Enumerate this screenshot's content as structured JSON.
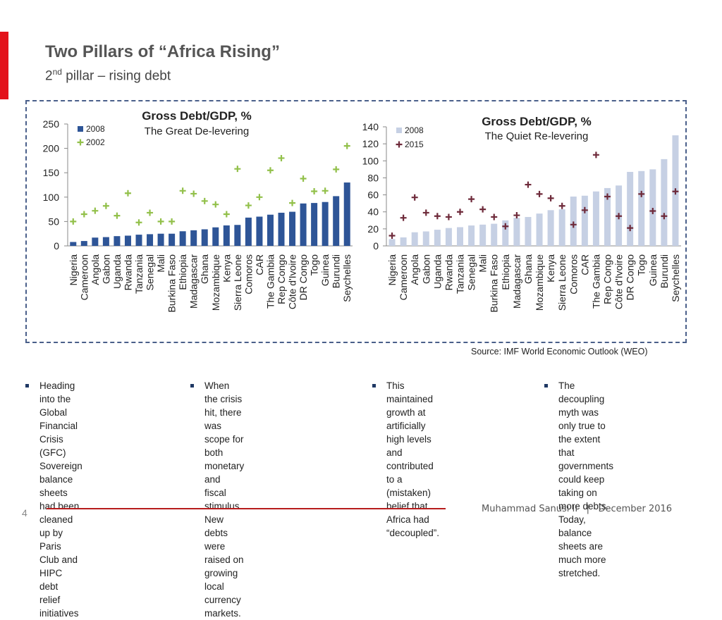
{
  "slide": {
    "title": "Two Pillars of “Africa Rising”",
    "subtitle_num": "2",
    "subtitle_sup": "nd",
    "subtitle_rest": " pillar – rising debt",
    "source": "Source: IMF World Economic Outlook (WEO)",
    "page_number": "4",
    "footer_author": "Muhammad Sanusi II",
    "footer_sep": "|",
    "footer_date": "December 2016",
    "colors": {
      "accent": "#e3121a",
      "bar_left": "#2e5597",
      "bar_right": "#c6d0e4",
      "marker_left": "#92c04a",
      "marker_right": "#6e2a3a"
    }
  },
  "bullets": [
    [
      "Heading into the Global",
      "Financial Crisis (GFC)",
      "Sovereign balance sheets",
      "had been cleaned up by",
      "Paris Club and HIPC debt",
      "relief initiatives"
    ],
    [
      "When the crisis hit, there",
      "was scope for both",
      "monetary and fiscal",
      "stimulus. New debts were",
      "raised on growing local",
      "currency markets."
    ],
    [
      "This maintained growth at",
      "artificially high levels and",
      "contributed to a",
      "(mistaken) belief that",
      "Africa had “decoupled”."
    ],
    [
      "The decoupling myth was",
      "only true to the extent that",
      "governments could keep",
      "taking on more debts.",
      "Today, balance sheets are",
      "much more stretched."
    ]
  ],
  "chart_data": [
    {
      "type": "bar",
      "title": "Gross Debt/GDP, %",
      "subtitle": "The Great De-levering",
      "categories": [
        "Nigeria",
        "Cameroon",
        "Angola",
        "Gabon",
        "Uganda",
        "Rwanda",
        "Tanzania",
        "Senegal",
        "Mali",
        "Burkina Faso",
        "Ethiopia",
        "Madagascar",
        "Ghana",
        "Mozambique",
        "Kenya",
        "Sierra Leone",
        "Comoros",
        "CAR",
        "The Gambia",
        "Rep Congo",
        "Côte d'Ivoire",
        "DR Congo",
        "Togo",
        "Guinea",
        "Burundi",
        "Seychelles"
      ],
      "series": [
        {
          "name": "2008",
          "kind": "bar",
          "values": [
            8,
            10,
            17,
            18,
            20,
            21,
            23,
            24,
            25,
            25,
            30,
            32,
            34,
            38,
            42,
            43,
            58,
            60,
            64,
            68,
            70,
            87,
            88,
            90,
            102,
            130
          ]
        },
        {
          "name": "2002",
          "kind": "marker",
          "values": [
            50,
            65,
            72,
            82,
            62,
            108,
            48,
            68,
            50,
            50,
            113,
            107,
            92,
            85,
            65,
            158,
            83,
            100,
            155,
            180,
            88,
            138,
            112,
            113,
            157,
            205
          ]
        }
      ],
      "yticks": [
        0,
        50,
        100,
        150,
        200,
        250
      ],
      "ylim": [
        0,
        250
      ],
      "legend_position": "top-left"
    },
    {
      "type": "bar",
      "title": "Gross Debt/GDP, %",
      "subtitle": "The Quiet Re-levering",
      "categories": [
        "Nigeria",
        "Cameroon",
        "Angola",
        "Gabon",
        "Uganda",
        "Rwanda",
        "Tanzania",
        "Senegal",
        "Mali",
        "Burkina Faso",
        "Ethiopia",
        "Madagascar",
        "Ghana",
        "Mozambique",
        "Kenya",
        "Sierra Leone",
        "Comoros",
        "CAR",
        "The Gambia",
        "Rep Congo",
        "Côte d'Ivoire",
        "DR Congo",
        "Togo",
        "Guinea",
        "Burundi",
        "Seychelles"
      ],
      "series": [
        {
          "name": "2008",
          "kind": "bar",
          "values": [
            8,
            10,
            16,
            17,
            19,
            21,
            22,
            24,
            25,
            26,
            30,
            33,
            34,
            38,
            42,
            43,
            58,
            59,
            64,
            68,
            71,
            87,
            88,
            90,
            102,
            130
          ]
        },
        {
          "name": "2015",
          "kind": "marker",
          "values": [
            12,
            33,
            57,
            39,
            35,
            34,
            40,
            55,
            43,
            34,
            23,
            36,
            72,
            61,
            56,
            47,
            25,
            42,
            107,
            58,
            35,
            21,
            61,
            41,
            35,
            64
          ]
        }
      ],
      "yticks": [
        0,
        20,
        40,
        60,
        80,
        100,
        120,
        140
      ],
      "ylim": [
        0,
        140
      ],
      "legend_position": "top-left"
    }
  ]
}
